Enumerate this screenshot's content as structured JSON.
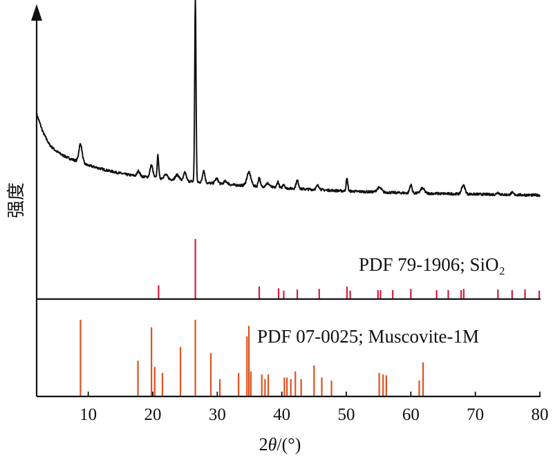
{
  "chart_data": {
    "type": "line",
    "title": "",
    "xlabel": {
      "prefix": "2",
      "symbol": "θ",
      "suffix": "/(°)"
    },
    "ylabel": "强度",
    "xlim": [
      2,
      80
    ],
    "xticks": [
      10,
      20,
      30,
      40,
      50,
      60,
      70,
      80
    ],
    "y_scale": "relative intensity (no tick labels)",
    "pattern": {
      "color": "#111111",
      "background": [
        [
          2,
          47
        ],
        [
          3,
          38
        ],
        [
          4,
          32
        ],
        [
          5,
          29
        ],
        [
          6,
          27
        ],
        [
          7,
          25.5
        ],
        [
          10,
          22
        ],
        [
          13,
          19.5
        ],
        [
          16,
          17.5
        ],
        [
          20,
          16
        ],
        [
          25,
          14.5
        ],
        [
          30,
          13
        ],
        [
          35,
          12
        ],
        [
          40,
          11
        ],
        [
          50,
          9.5
        ],
        [
          60,
          8.5
        ],
        [
          70,
          8
        ],
        [
          80,
          7.5
        ]
      ],
      "peaks": [
        {
          "x": 8.8,
          "h": 9,
          "w": 0.25
        },
        {
          "x": 17.8,
          "h": 2.5,
          "w": 0.2
        },
        {
          "x": 19.8,
          "h": 6,
          "w": 0.22
        },
        {
          "x": 20.8,
          "h": 11,
          "w": 0.12
        },
        {
          "x": 22.0,
          "h": 2,
          "w": 0.3
        },
        {
          "x": 23.8,
          "h": 2.5,
          "w": 0.3
        },
        {
          "x": 25.0,
          "h": 4,
          "w": 0.2
        },
        {
          "x": 26.6,
          "h": 90,
          "w": 0.1
        },
        {
          "x": 27.9,
          "h": 6,
          "w": 0.18
        },
        {
          "x": 29.9,
          "h": 2.5,
          "w": 0.25
        },
        {
          "x": 31.3,
          "h": 1.5,
          "w": 0.3
        },
        {
          "x": 34.9,
          "h": 6.5,
          "w": 0.32
        },
        {
          "x": 36.5,
          "h": 4.5,
          "w": 0.15
        },
        {
          "x": 37.8,
          "h": 1.8,
          "w": 0.3
        },
        {
          "x": 39.4,
          "h": 3,
          "w": 0.15
        },
        {
          "x": 40.3,
          "h": 2,
          "w": 0.15
        },
        {
          "x": 42.4,
          "h": 4,
          "w": 0.2
        },
        {
          "x": 45.6,
          "h": 2,
          "w": 0.25
        },
        {
          "x": 50.1,
          "h": 6,
          "w": 0.13
        },
        {
          "x": 54.9,
          "h": 1.5,
          "w": 0.25
        },
        {
          "x": 55.3,
          "h": 1.5,
          "w": 0.25
        },
        {
          "x": 60.0,
          "h": 4,
          "w": 0.18
        },
        {
          "x": 61.8,
          "h": 2.5,
          "w": 0.3
        },
        {
          "x": 68.0,
          "h": 3,
          "w": 0.2
        },
        {
          "x": 68.3,
          "h": 2.5,
          "w": 0.2
        },
        {
          "x": 73.5,
          "h": 1,
          "w": 0.2
        },
        {
          "x": 75.7,
          "h": 1,
          "w": 0.2
        }
      ]
    },
    "references": [
      {
        "label": "PDF 79-1906; SiO₂",
        "color": "#d81b3c",
        "lines": [
          {
            "x": 20.9,
            "i": 22
          },
          {
            "x": 26.6,
            "i": 100
          },
          {
            "x": 36.5,
            "i": 20
          },
          {
            "x": 39.5,
            "i": 17
          },
          {
            "x": 40.3,
            "i": 13
          },
          {
            "x": 42.4,
            "i": 15
          },
          {
            "x": 45.8,
            "i": 16
          },
          {
            "x": 50.1,
            "i": 20
          },
          {
            "x": 50.6,
            "i": 13
          },
          {
            "x": 54.9,
            "i": 14
          },
          {
            "x": 55.3,
            "i": 14
          },
          {
            "x": 57.2,
            "i": 14
          },
          {
            "x": 60.0,
            "i": 16
          },
          {
            "x": 64.0,
            "i": 14
          },
          {
            "x": 65.8,
            "i": 14
          },
          {
            "x": 67.8,
            "i": 14
          },
          {
            "x": 68.2,
            "i": 16
          },
          {
            "x": 73.5,
            "i": 15
          },
          {
            "x": 75.7,
            "i": 14
          },
          {
            "x": 77.7,
            "i": 15
          },
          {
            "x": 79.9,
            "i": 13
          }
        ]
      },
      {
        "label": "PDF 07-0025; Muscovite-1M",
        "color": "#e0501f",
        "lines": [
          {
            "x": 8.8,
            "i": 100
          },
          {
            "x": 17.7,
            "i": 46
          },
          {
            "x": 19.8,
            "i": 90
          },
          {
            "x": 20.3,
            "i": 38
          },
          {
            "x": 21.5,
            "i": 30
          },
          {
            "x": 24.3,
            "i": 64
          },
          {
            "x": 26.6,
            "i": 100
          },
          {
            "x": 29.0,
            "i": 56
          },
          {
            "x": 30.4,
            "i": 22
          },
          {
            "x": 33.3,
            "i": 30
          },
          {
            "x": 34.6,
            "i": 78
          },
          {
            "x": 34.9,
            "i": 92
          },
          {
            "x": 35.2,
            "i": 32
          },
          {
            "x": 36.9,
            "i": 28
          },
          {
            "x": 37.4,
            "i": 22
          },
          {
            "x": 37.9,
            "i": 28
          },
          {
            "x": 40.4,
            "i": 24
          },
          {
            "x": 40.8,
            "i": 24
          },
          {
            "x": 41.4,
            "i": 22
          },
          {
            "x": 42.1,
            "i": 32
          },
          {
            "x": 43.0,
            "i": 22
          },
          {
            "x": 45.0,
            "i": 40
          },
          {
            "x": 46.2,
            "i": 24
          },
          {
            "x": 47.7,
            "i": 20
          },
          {
            "x": 55.1,
            "i": 30
          },
          {
            "x": 55.7,
            "i": 28
          },
          {
            "x": 56.2,
            "i": 27
          },
          {
            "x": 61.3,
            "i": 20
          },
          {
            "x": 61.9,
            "i": 44
          }
        ]
      }
    ],
    "grid": false,
    "legend": "none (reference labels printed inside panels)"
  }
}
